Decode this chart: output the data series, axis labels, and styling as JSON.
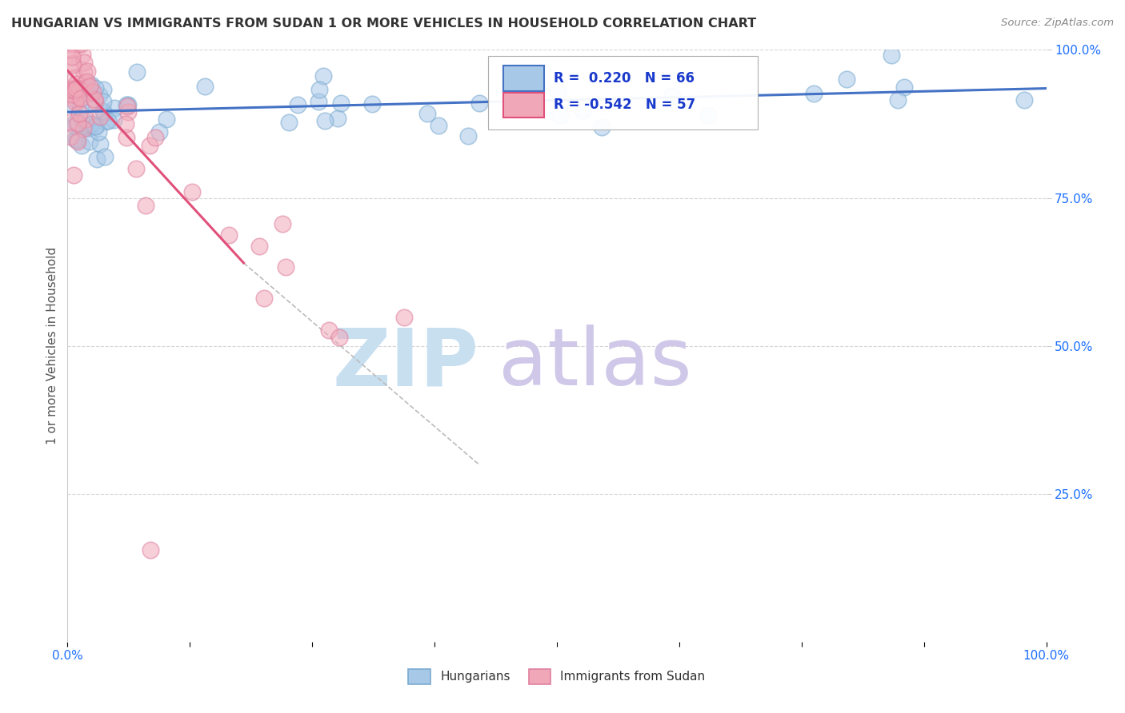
{
  "title": "HUNGARIAN VS IMMIGRANTS FROM SUDAN 1 OR MORE VEHICLES IN HOUSEHOLD CORRELATION CHART",
  "source": "Source: ZipAtlas.com",
  "ylabel": "1 or more Vehicles in Household",
  "background_color": "#ffffff",
  "grid_color": "#cccccc",
  "hungarian_dot_color": "#a8c8e8",
  "hungarian_dot_edge": "#7aaad0",
  "sudan_dot_color": "#f0a8b8",
  "sudan_dot_edge": "#e080a0",
  "hungarian_line_color": "#4472c4",
  "sudan_line_color": "#e0507a",
  "watermark_zip_color": "#c8dff0",
  "watermark_atlas_color": "#d0c8e8",
  "legend_r1": "R =  0.220",
  "legend_n1": "N = 66",
  "legend_r2": "R = -0.542",
  "legend_n2": "N = 57",
  "legend_text_color": "#1a3acc",
  "title_color": "#333333",
  "source_color": "#888888",
  "axis_label_color": "#1a6eff",
  "ylabel_color": "#555555"
}
